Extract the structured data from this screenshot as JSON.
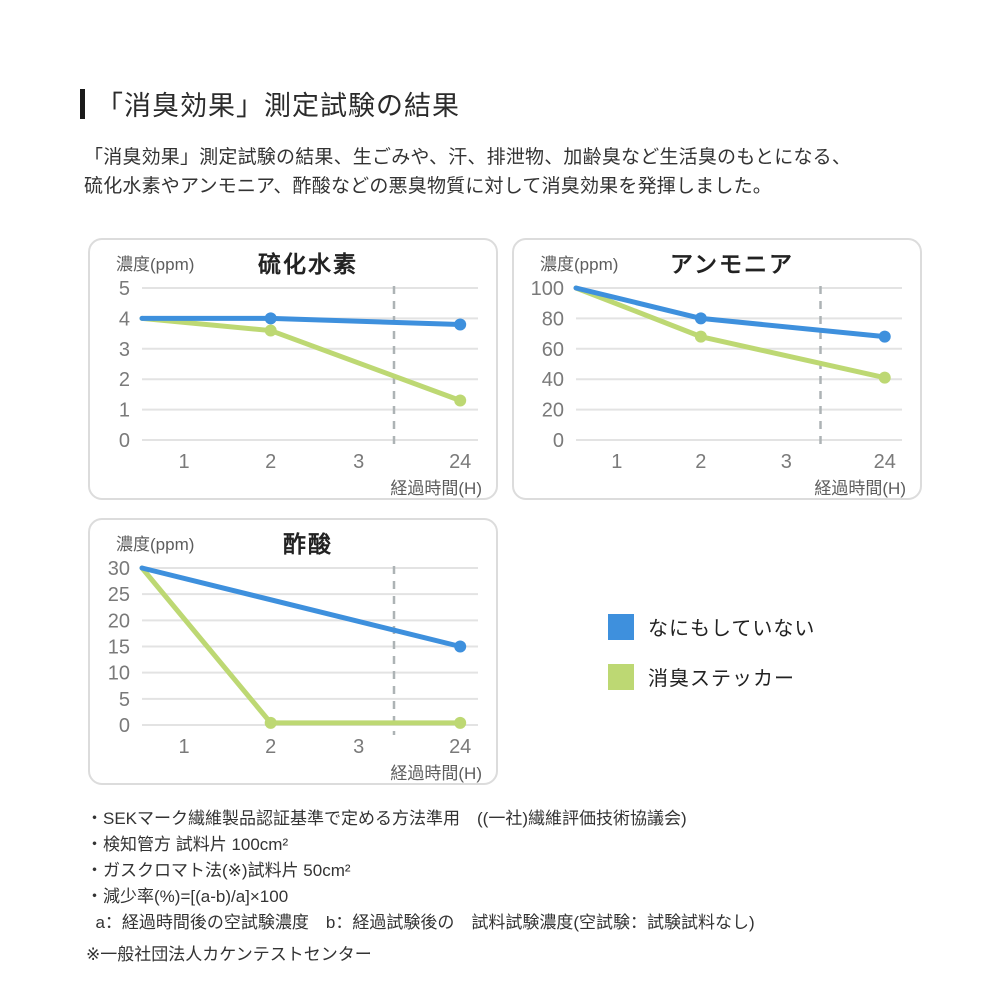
{
  "page": {
    "title": "「消臭効果」測定試験の結果",
    "intro_line1": "「消臭効果」測定試験の結果、生ごみや、汗、排泄物、加齢臭など生活臭のもとになる、",
    "intro_line2": "硫化水素やアンモニア、酢酸などの悪臭物質に対して消臭効果を発揮しました。"
  },
  "colors": {
    "blue": "#3e90dd",
    "green": "#bdd873",
    "grid": "#e3e3e3",
    "dash": "#adb3b5",
    "tick_text": "#7a7a7a",
    "label_text": "#5d5d5d",
    "chart_title_text": "#222222",
    "panel_border": "#dcdcdc"
  },
  "legend": {
    "items": [
      {
        "label": "なにもしていない",
        "color": "blue"
      },
      {
        "label": "消臭ステッカー",
        "color": "green"
      }
    ]
  },
  "chart_data": [
    {
      "type": "line",
      "title": "硫化水素",
      "ylabel": "濃度(ppm)",
      "xlabel": "経過時間(H)",
      "x_ticks": [
        "1",
        "2",
        "3",
        "24"
      ],
      "y_ticks": [
        5,
        4,
        3,
        2,
        1,
        0
      ],
      "ylim": [
        0,
        5
      ],
      "axis_break_between": [
        "3",
        "24"
      ],
      "grid": true,
      "series": [
        {
          "name": "なにもしていない",
          "color": "blue",
          "points": [
            {
              "h": 0,
              "v": 4.0
            },
            {
              "h": 2,
              "v": 4.0
            },
            {
              "h": 24,
              "v": 3.8
            }
          ],
          "marker_hours": [
            2,
            24
          ]
        },
        {
          "name": "消臭ステッカー",
          "color": "green",
          "points": [
            {
              "h": 0,
              "v": 4.0
            },
            {
              "h": 2,
              "v": 3.6
            },
            {
              "h": 24,
              "v": 1.3
            }
          ],
          "marker_hours": [
            2,
            24
          ]
        }
      ]
    },
    {
      "type": "line",
      "title": "アンモニア",
      "ylabel": "濃度(ppm)",
      "xlabel": "経過時間(H)",
      "x_ticks": [
        "1",
        "2",
        "3",
        "24"
      ],
      "y_ticks": [
        100,
        80,
        60,
        40,
        20,
        0
      ],
      "ylim": [
        0,
        100
      ],
      "axis_break_between": [
        "3",
        "24"
      ],
      "grid": true,
      "series": [
        {
          "name": "なにもしていない",
          "color": "blue",
          "points": [
            {
              "h": 0,
              "v": 100
            },
            {
              "h": 2,
              "v": 80
            },
            {
              "h": 24,
              "v": 68
            }
          ],
          "marker_hours": [
            2,
            24
          ]
        },
        {
          "name": "消臭ステッカー",
          "color": "green",
          "points": [
            {
              "h": 0,
              "v": 100
            },
            {
              "h": 2,
              "v": 68
            },
            {
              "h": 24,
              "v": 41
            }
          ],
          "marker_hours": [
            2,
            24
          ]
        }
      ]
    },
    {
      "type": "line",
      "title": "酢酸",
      "ylabel": "濃度(ppm)",
      "xlabel": "経過時間(H)",
      "x_ticks": [
        "1",
        "2",
        "3",
        "24"
      ],
      "y_ticks": [
        30,
        25,
        20,
        15,
        10,
        5,
        0
      ],
      "ylim": [
        0,
        30
      ],
      "axis_break_between": [
        "3",
        "24"
      ],
      "grid": true,
      "series": [
        {
          "name": "なにもしていない",
          "color": "blue",
          "points": [
            {
              "h": 0,
              "v": 30
            },
            {
              "h": 24,
              "v": 15
            }
          ],
          "marker_hours": [
            24
          ]
        },
        {
          "name": "消臭ステッカー",
          "color": "green",
          "points": [
            {
              "h": 0,
              "v": 30
            },
            {
              "h": 2,
              "v": 0.4
            },
            {
              "h": 24,
              "v": 0.4
            }
          ],
          "marker_hours": [
            2,
            24
          ]
        }
      ]
    }
  ],
  "footnotes": {
    "lines": [
      "・SEKマーク繊維製品認証基準で定める方法準用　((一社)繊維評価技術協議会)",
      "・検知管方 試料片 100cm²",
      "・ガスクロマト法(※)試料片 50cm²",
      "・減少率(%)=[(a-b)/a]×100",
      "  a：経過時間後の空試験濃度　b：経過試験後の　試料試験濃度(空試験：試験試料なし)"
    ],
    "disclaimer": "※一般社団法人カケンテストセンター"
  }
}
